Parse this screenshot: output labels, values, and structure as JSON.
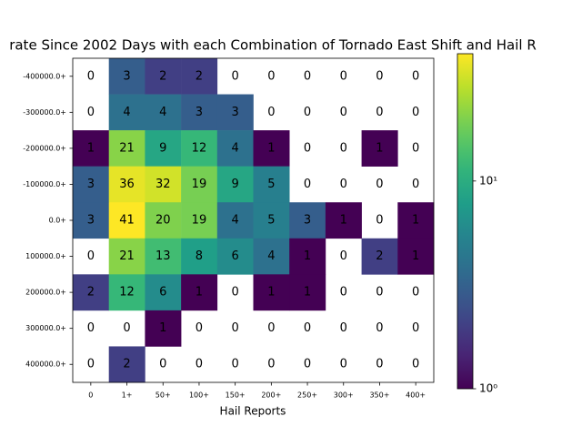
{
  "chart_data": {
    "type": "heatmap",
    "title": "rate Since 2002 Days with each Combination of Tornado East Shift and Hail R",
    "x_label": "Hail Reports",
    "x_categories": [
      "0",
      "1+",
      "50+",
      "100+",
      "150+",
      "200+",
      "250+",
      "300+",
      "350+",
      "400+"
    ],
    "y_categories": [
      "-400000.0+",
      "-300000.0+",
      "-200000.0+",
      "-100000.0+",
      "0.0+",
      "100000.0+",
      "200000.0+",
      "300000.0+",
      "400000.0+"
    ],
    "values": [
      [
        0,
        3,
        2,
        2,
        0,
        0,
        0,
        0,
        0,
        0
      ],
      [
        0,
        4,
        4,
        3,
        3,
        0,
        0,
        0,
        0,
        0
      ],
      [
        1,
        21,
        9,
        12,
        4,
        1,
        0,
        0,
        1,
        0
      ],
      [
        3,
        36,
        32,
        19,
        9,
        5,
        0,
        0,
        0,
        0
      ],
      [
        3,
        41,
        20,
        19,
        4,
        5,
        3,
        1,
        0,
        1
      ],
      [
        0,
        21,
        13,
        8,
        6,
        4,
        1,
        0,
        2,
        1
      ],
      [
        2,
        12,
        6,
        1,
        0,
        1,
        1,
        0,
        0,
        0
      ],
      [
        0,
        0,
        1,
        0,
        0,
        0,
        0,
        0,
        0,
        0
      ],
      [
        0,
        2,
        0,
        0,
        0,
        0,
        0,
        0,
        0,
        0
      ]
    ],
    "colormap": "viridis",
    "color_scale": "log",
    "zlim": [
      1,
      41
    ],
    "zticks": [
      {
        "value": 1,
        "label": "10⁰"
      },
      {
        "value": 10,
        "label": "10¹"
      }
    ]
  }
}
